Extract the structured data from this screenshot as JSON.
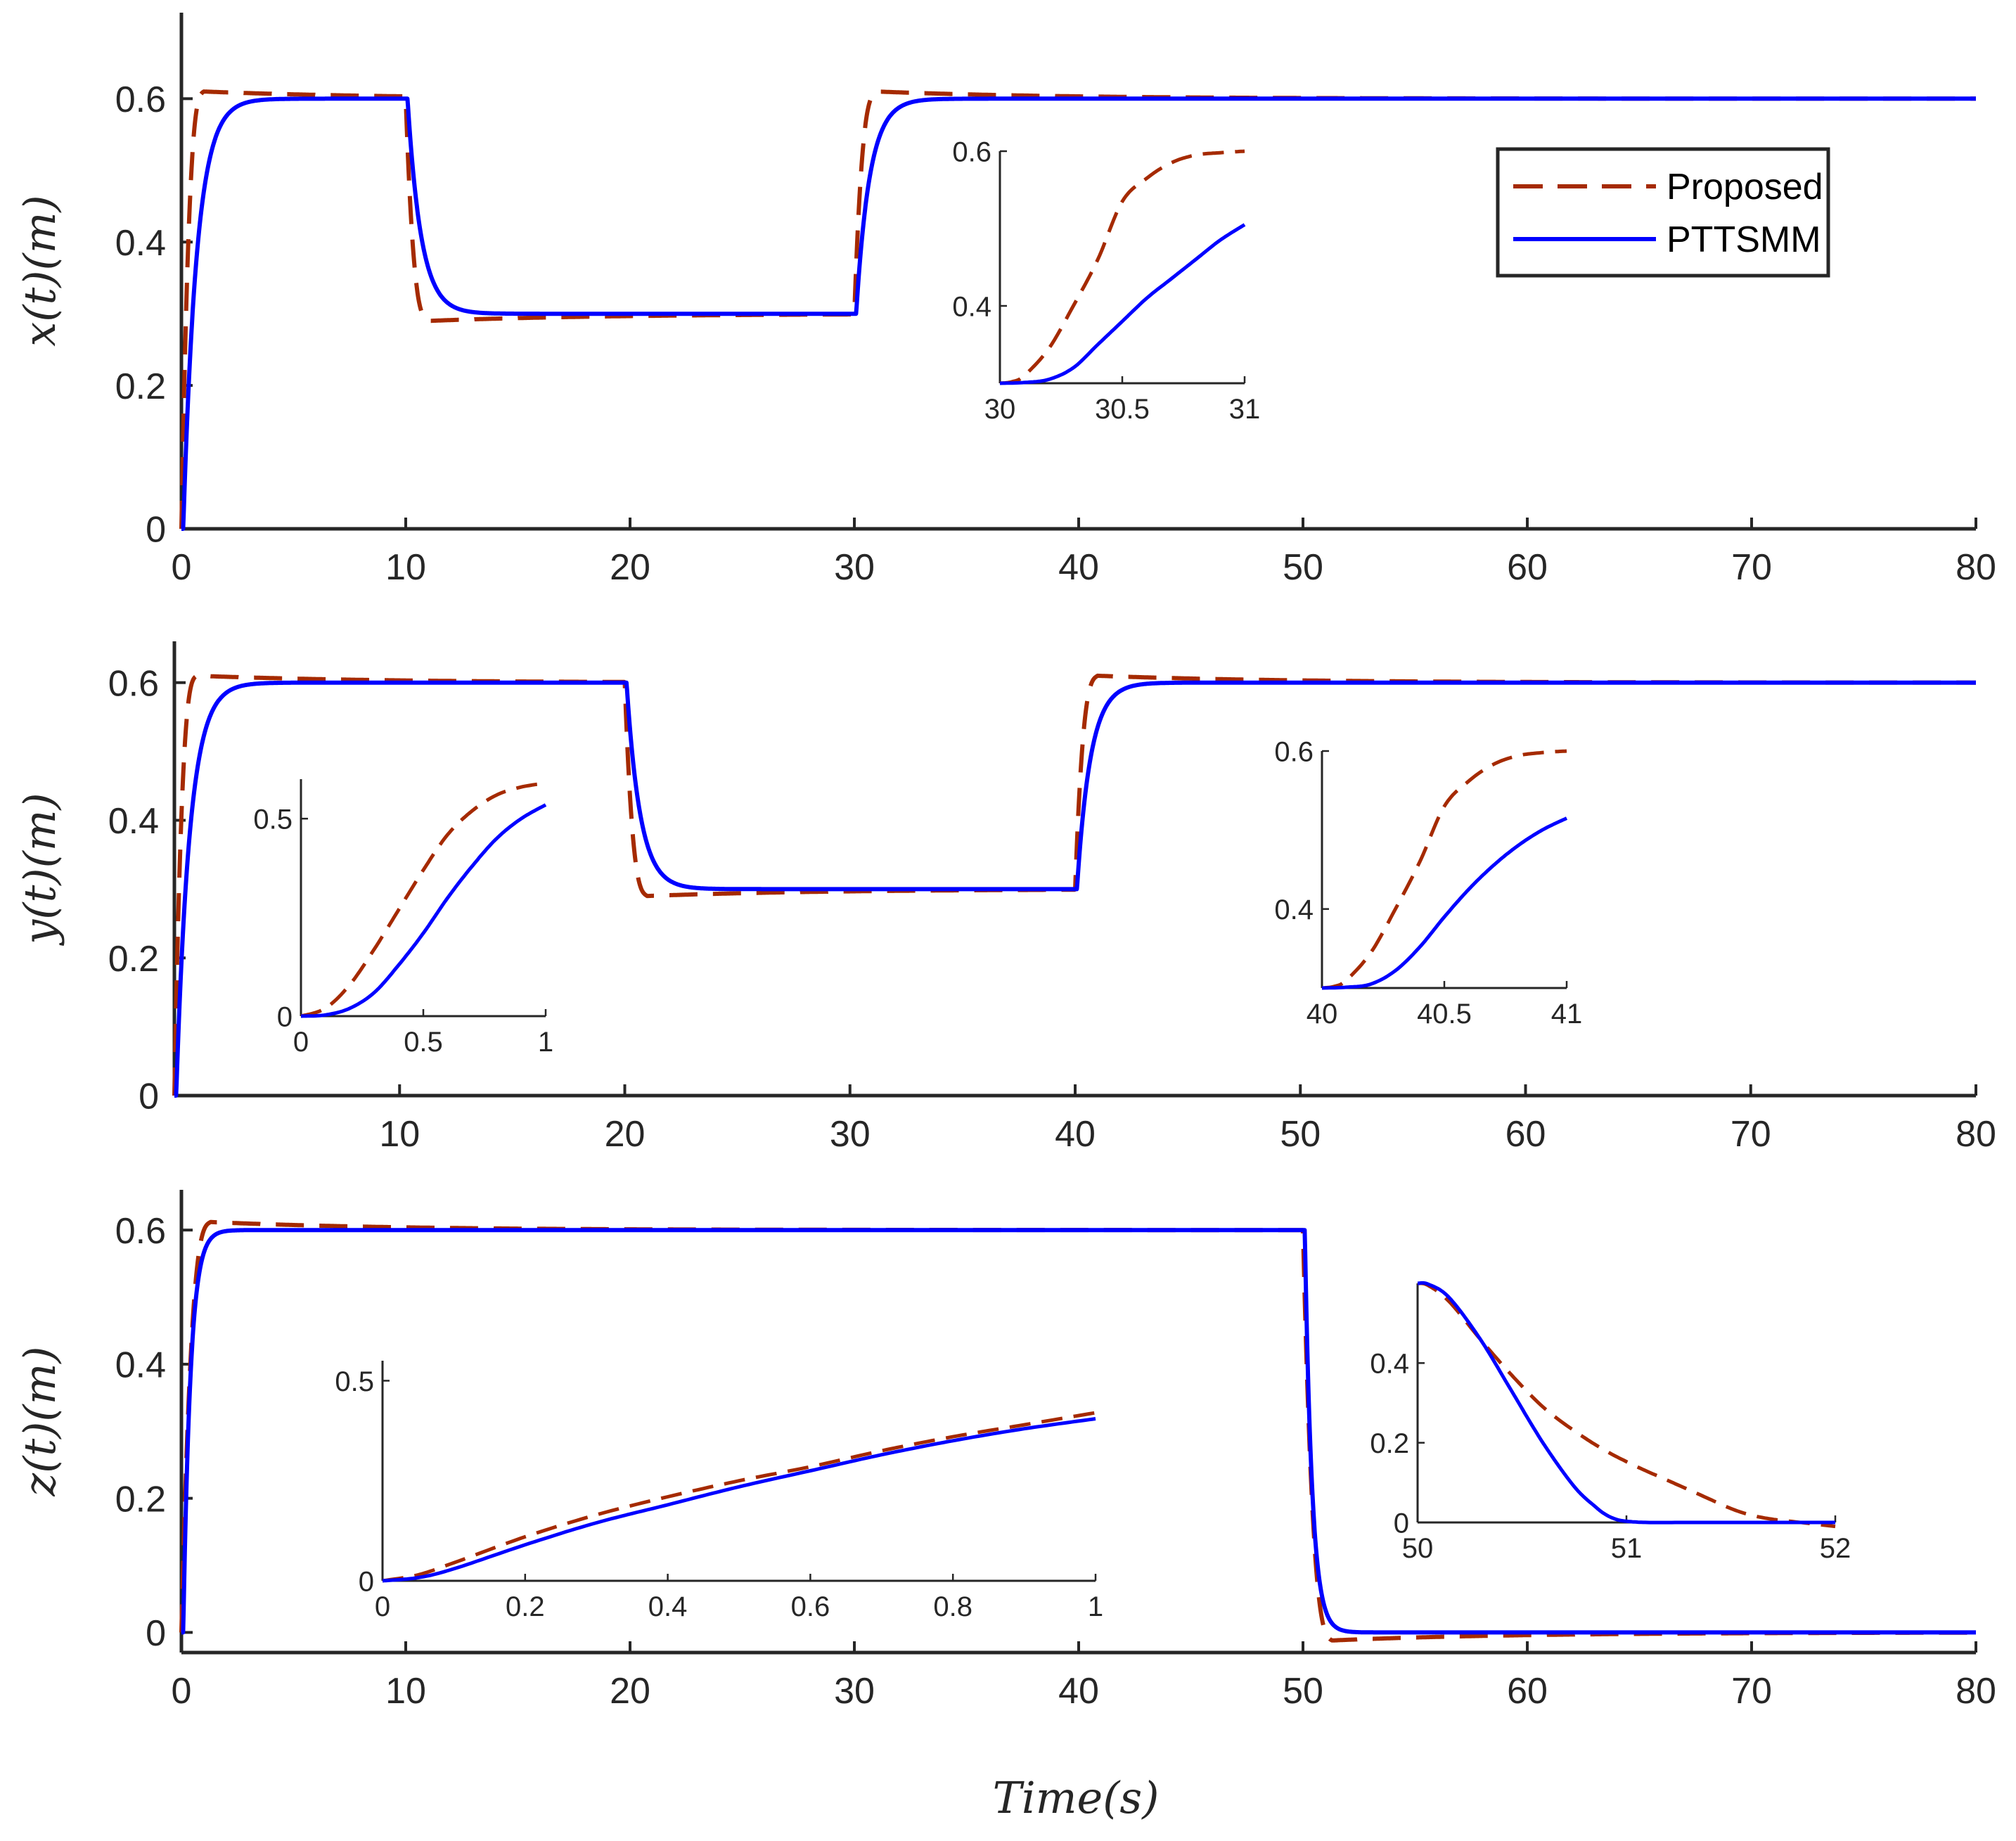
{
  "figure": {
    "xlabel": "Time(s)"
  },
  "colors": {
    "proposed": "#A52A00",
    "pttsmm": "#0000FF",
    "axis": "#262626"
  },
  "legend": {
    "location": "top-right of first panel",
    "entries": [
      {
        "label": "Proposed",
        "style": "dashed",
        "color": "#A52A00"
      },
      {
        "label": "PTTSMM",
        "style": "solid",
        "color": "#0000FF"
      }
    ]
  },
  "chart_data": [
    {
      "type": "line",
      "panel": "x",
      "ylabel": "x(t)(m)",
      "xlim": [
        0,
        80
      ],
      "ylim": [
        0,
        0.72
      ],
      "xticks": [
        "0",
        "10",
        "20",
        "30",
        "40",
        "50",
        "60",
        "70",
        "80"
      ],
      "yticks": [
        "0",
        "0.2",
        "0.4",
        "0.6"
      ],
      "reference_steps": [
        [
          0,
          0.6
        ],
        [
          10,
          0.3
        ],
        [
          30,
          0.6
        ]
      ],
      "series": [
        {
          "name": "Proposed",
          "settle_time_s": 1.0,
          "overshoot": 0.01
        },
        {
          "name": "PTTSMM",
          "settle_time_s": 3.0,
          "overshoot": 0.0
        }
      ],
      "insets": [
        {
          "xlim": [
            30,
            31
          ],
          "ylim": [
            0.3,
            0.6
          ],
          "xticks": [
            "30",
            "30.5",
            "31"
          ],
          "yticks": [
            "0.4",
            "0.6"
          ],
          "location": "center",
          "series": [
            {
              "name": "Proposed",
              "x": [
                30,
                30.05,
                30.1,
                30.2,
                30.3,
                30.4,
                30.5,
                30.6,
                30.7,
                30.8,
                30.9,
                31.0
              ],
              "y": [
                0.3,
                0.302,
                0.31,
                0.345,
                0.4,
                0.46,
                0.535,
                0.565,
                0.585,
                0.595,
                0.598,
                0.6
              ]
            },
            {
              "name": "PTTSMM",
              "x": [
                30,
                30.1,
                30.2,
                30.3,
                30.4,
                30.5,
                30.6,
                30.7,
                30.8,
                30.9,
                31.0
              ],
              "y": [
                0.3,
                0.301,
                0.305,
                0.32,
                0.35,
                0.38,
                0.41,
                0.435,
                0.46,
                0.485,
                0.505
              ]
            }
          ]
        }
      ]
    },
    {
      "type": "line",
      "panel": "y",
      "ylabel": "y(t)(m)",
      "xlim": [
        0,
        80
      ],
      "ylim": [
        0,
        0.66
      ],
      "xticks": [
        "10",
        "20",
        "30",
        "40",
        "50",
        "60",
        "70",
        "80"
      ],
      "yticks": [
        "0",
        "0.2",
        "0.4",
        "0.6"
      ],
      "reference_steps": [
        [
          0,
          0.6
        ],
        [
          20,
          0.3
        ],
        [
          40,
          0.6
        ]
      ],
      "series": [
        {
          "name": "Proposed",
          "settle_time_s": 1.0,
          "overshoot": 0.01
        },
        {
          "name": "PTTSMM",
          "settle_time_s": 3.0,
          "overshoot": 0.0
        }
      ],
      "insets": [
        {
          "xlim": [
            0,
            1
          ],
          "ylim": [
            0,
            0.6
          ],
          "xticks": [
            "0",
            "0.5",
            "1"
          ],
          "yticks": [
            "0",
            "0.5"
          ],
          "location": "left",
          "series": [
            {
              "name": "Proposed",
              "x": [
                0,
                0.1,
                0.2,
                0.3,
                0.4,
                0.5,
                0.6,
                0.7,
                0.8,
                0.9,
                1.0
              ],
              "y": [
                0,
                0.02,
                0.08,
                0.17,
                0.27,
                0.37,
                0.46,
                0.52,
                0.56,
                0.58,
                0.59
              ]
            },
            {
              "name": "PTTSMM",
              "x": [
                0,
                0.1,
                0.2,
                0.3,
                0.4,
                0.5,
                0.6,
                0.7,
                0.8,
                0.9,
                1.0
              ],
              "y": [
                0,
                0.003,
                0.02,
                0.06,
                0.13,
                0.21,
                0.3,
                0.38,
                0.45,
                0.5,
                0.535
              ]
            }
          ]
        },
        {
          "xlim": [
            40,
            41
          ],
          "ylim": [
            0.3,
            0.6
          ],
          "xticks": [
            "40",
            "40.5",
            "41"
          ],
          "yticks": [
            "0.4",
            "0.6"
          ],
          "location": "right",
          "series": [
            {
              "name": "Proposed",
              "x": [
                40,
                40.05,
                40.1,
                40.2,
                40.3,
                40.4,
                40.5,
                40.6,
                40.7,
                40.8,
                40.9,
                41.0
              ],
              "y": [
                0.3,
                0.302,
                0.31,
                0.345,
                0.4,
                0.46,
                0.53,
                0.562,
                0.583,
                0.594,
                0.598,
                0.6
              ]
            },
            {
              "name": "PTTSMM",
              "x": [
                40,
                40.1,
                40.2,
                40.3,
                40.4,
                40.5,
                40.6,
                40.7,
                40.8,
                40.9,
                41.0
              ],
              "y": [
                0.3,
                0.301,
                0.305,
                0.322,
                0.352,
                0.39,
                0.425,
                0.455,
                0.48,
                0.5,
                0.515
              ]
            }
          ]
        }
      ]
    },
    {
      "type": "line",
      "panel": "z",
      "ylabel": "z(t)(m)",
      "xlim": [
        0,
        80
      ],
      "ylim": [
        -0.03,
        0.66
      ],
      "xticks": [
        "0",
        "10",
        "20",
        "30",
        "40",
        "50",
        "60",
        "70",
        "80"
      ],
      "yticks": [
        "0",
        "0.2",
        "0.4",
        "0.6"
      ],
      "reference_steps": [
        [
          0,
          0.6
        ],
        [
          50,
          0.0
        ]
      ],
      "series": [
        {
          "name": "Proposed",
          "settle_time_s": 1.3,
          "overshoot": 0.012
        },
        {
          "name": "PTTSMM",
          "settle_time_s": 1.3,
          "overshoot": 0.0
        }
      ],
      "insets": [
        {
          "xlim": [
            0,
            1
          ],
          "ylim": [
            0,
            0.55
          ],
          "xticks": [
            "0",
            "0.2",
            "0.4",
            "0.6",
            "0.8",
            "1"
          ],
          "yticks": [
            "0",
            "0.5"
          ],
          "location": "center",
          "series": [
            {
              "name": "Proposed",
              "x": [
                0,
                0.05,
                0.1,
                0.2,
                0.3,
                0.4,
                0.5,
                0.6,
                0.7,
                0.8,
                0.9,
                1.0
              ],
              "y": [
                0,
                0.015,
                0.045,
                0.11,
                0.165,
                0.21,
                0.25,
                0.285,
                0.325,
                0.36,
                0.39,
                0.42
              ]
            },
            {
              "name": "PTTSMM",
              "x": [
                0,
                0.05,
                0.1,
                0.2,
                0.3,
                0.4,
                0.5,
                0.6,
                0.7,
                0.8,
                0.9,
                1.0
              ],
              "y": [
                0,
                0.008,
                0.03,
                0.09,
                0.145,
                0.19,
                0.235,
                0.275,
                0.315,
                0.35,
                0.38,
                0.405
              ]
            }
          ]
        },
        {
          "xlim": [
            50,
            52
          ],
          "ylim": [
            0,
            0.6
          ],
          "xticks": [
            "50",
            "51",
            "52"
          ],
          "yticks": [
            "0",
            "0.2",
            "0.4"
          ],
          "location": "right",
          "series": [
            {
              "name": "Proposed",
              "x": [
                50,
                50.05,
                50.15,
                50.3,
                50.45,
                50.6,
                50.75,
                50.9,
                51.05,
                51.2,
                51.35,
                51.5,
                51.6,
                51.7,
                51.8,
                52.0
              ],
              "y": [
                0.6,
                0.595,
                0.555,
                0.46,
                0.37,
                0.29,
                0.23,
                0.18,
                0.14,
                0.105,
                0.07,
                0.035,
                0.018,
                0.008,
                0.002,
                -0.01
              ]
            },
            {
              "name": "PTTSMM",
              "x": [
                50,
                50.05,
                50.15,
                50.3,
                50.45,
                50.6,
                50.75,
                50.85,
                50.9,
                50.95,
                51.0,
                51.1,
                51.3,
                51.6,
                52.0
              ],
              "y": [
                0.6,
                0.598,
                0.565,
                0.46,
                0.33,
                0.2,
                0.09,
                0.04,
                0.02,
                0.008,
                0.003,
                0.0,
                0.0,
                0.0,
                0.0
              ]
            }
          ]
        }
      ]
    }
  ]
}
